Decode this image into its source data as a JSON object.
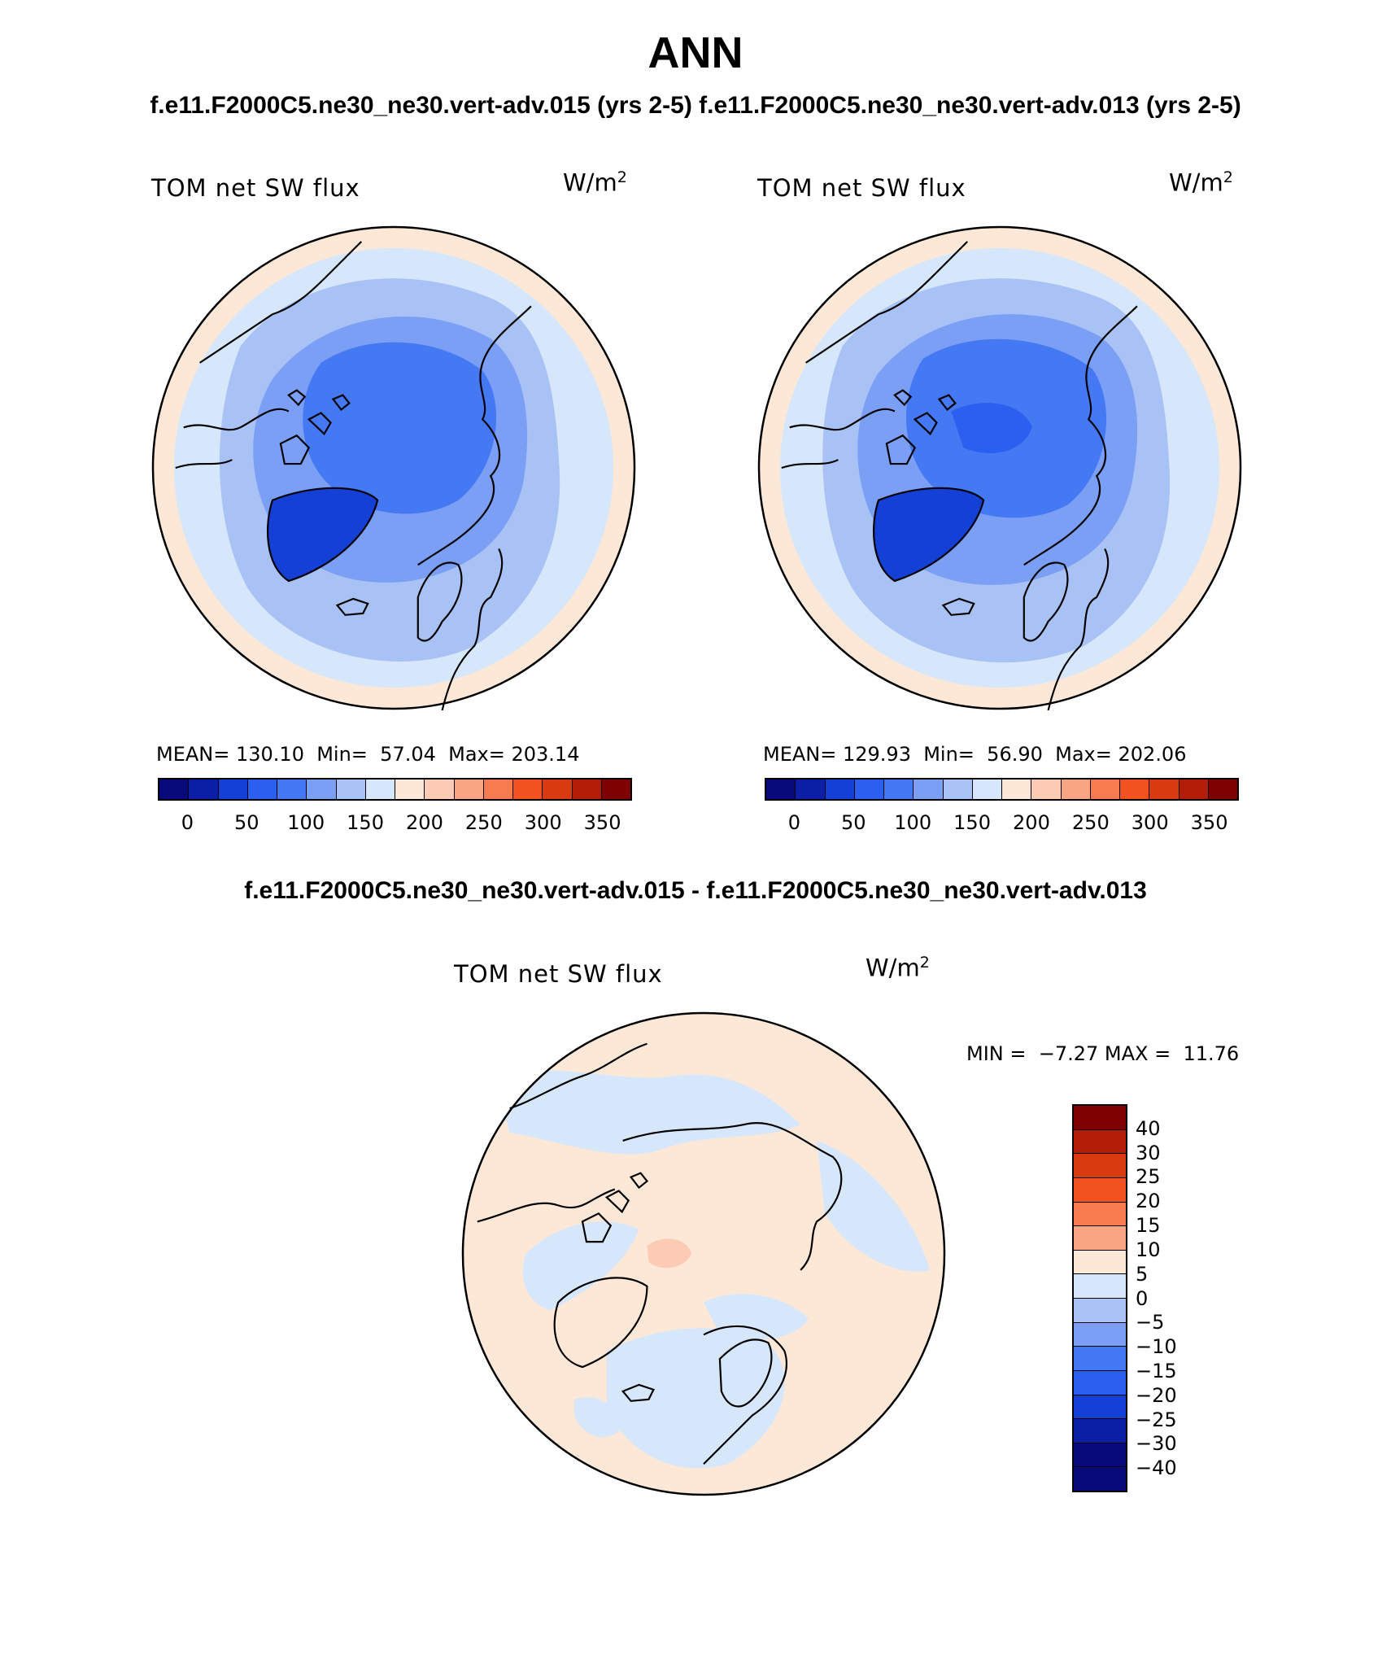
{
  "title": "ANN",
  "subtitle": "f.e11.F2000C5.ne30_ne30.vert-adv.015 (yrs 2-5) f.e11.F2000C5.ne30_ne30.vert-adv.013 (yrs 2-5)",
  "diff_title": "f.e11.F2000C5.ne30_ne30.vert-adv.015 - f.e11.F2000C5.ne30_ne30.vert-adv.013",
  "colors": {
    "abs_scale": [
      "#08097a",
      "#0a1ea6",
      "#1540d5",
      "#2a5ff0",
      "#4579f3",
      "#7b9ff5",
      "#a9c2f5",
      "#d6e7fb",
      "#fde8d8",
      "#fccab5",
      "#f9a482",
      "#f77b4f",
      "#f2521f",
      "#d93a10",
      "#b31c07",
      "#7f0000"
    ],
    "diff_scale": [
      "#7f0000",
      "#b31c07",
      "#d93a10",
      "#f2521f",
      "#f77b4f",
      "#f9a482",
      "#fde8d8",
      "#d6e7fb",
      "#a9c2f5",
      "#7b9ff5",
      "#4579f3",
      "#2a5ff0",
      "#1540d5",
      "#0a1ea6",
      "#08097a"
    ],
    "coast": "#000000"
  },
  "panels": {
    "left": {
      "label": "TOM net SW flux",
      "units": "W/m",
      "units_sup": "2",
      "stats": "MEAN= 130.10  Min=  57.04  Max= 203.14",
      "ticks": [
        "0",
        "50",
        "100",
        "150",
        "200",
        "250",
        "300",
        "350"
      ]
    },
    "right": {
      "label": "TOM net SW flux",
      "units": "W/m",
      "units_sup": "2",
      "stats": "MEAN= 129.93  Min=  56.90  Max= 202.06",
      "ticks": [
        "0",
        "50",
        "100",
        "150",
        "200",
        "250",
        "300",
        "350"
      ]
    },
    "diff": {
      "label": "TOM net SW flux",
      "units": "W/m",
      "units_sup": "2",
      "minmax": "MIN =  −7.27 MAX =  11.76",
      "ticks": [
        "40",
        "30",
        "25",
        "20",
        "15",
        "10",
        "5",
        "0",
        "−5",
        "−10",
        "−15",
        "−20",
        "−25",
        "−30",
        "−40"
      ]
    }
  },
  "chart_data": [
    {
      "type": "heatmap",
      "projection": "north polar stereographic",
      "title": "TOM net SW flux",
      "case": "f.e11.F2000C5.ne30_ne30.vert-adv.015 (yrs 2-5)",
      "units": "W/m2",
      "mean": 130.1,
      "min": 57.04,
      "max": 203.14,
      "contour_levels": [
        0,
        50,
        100,
        150,
        200,
        250,
        300,
        350
      ]
    },
    {
      "type": "heatmap",
      "projection": "north polar stereographic",
      "title": "TOM net SW flux",
      "case": "f.e11.F2000C5.ne30_ne30.vert-adv.013 (yrs 2-5)",
      "units": "W/m2",
      "mean": 129.93,
      "min": 56.9,
      "max": 202.06,
      "contour_levels": [
        0,
        50,
        100,
        150,
        200,
        250,
        300,
        350
      ]
    },
    {
      "type": "heatmap",
      "projection": "north polar stereographic",
      "title": "TOM net SW flux",
      "case": "f.e11.F2000C5.ne30_ne30.vert-adv.015 - f.e11.F2000C5.ne30_ne30.vert-adv.013",
      "units": "W/m2",
      "min": -7.27,
      "max": 11.76,
      "contour_levels": [
        -40,
        -30,
        -25,
        -20,
        -15,
        -10,
        -5,
        0,
        5,
        10,
        15,
        20,
        25,
        30,
        40
      ]
    }
  ]
}
